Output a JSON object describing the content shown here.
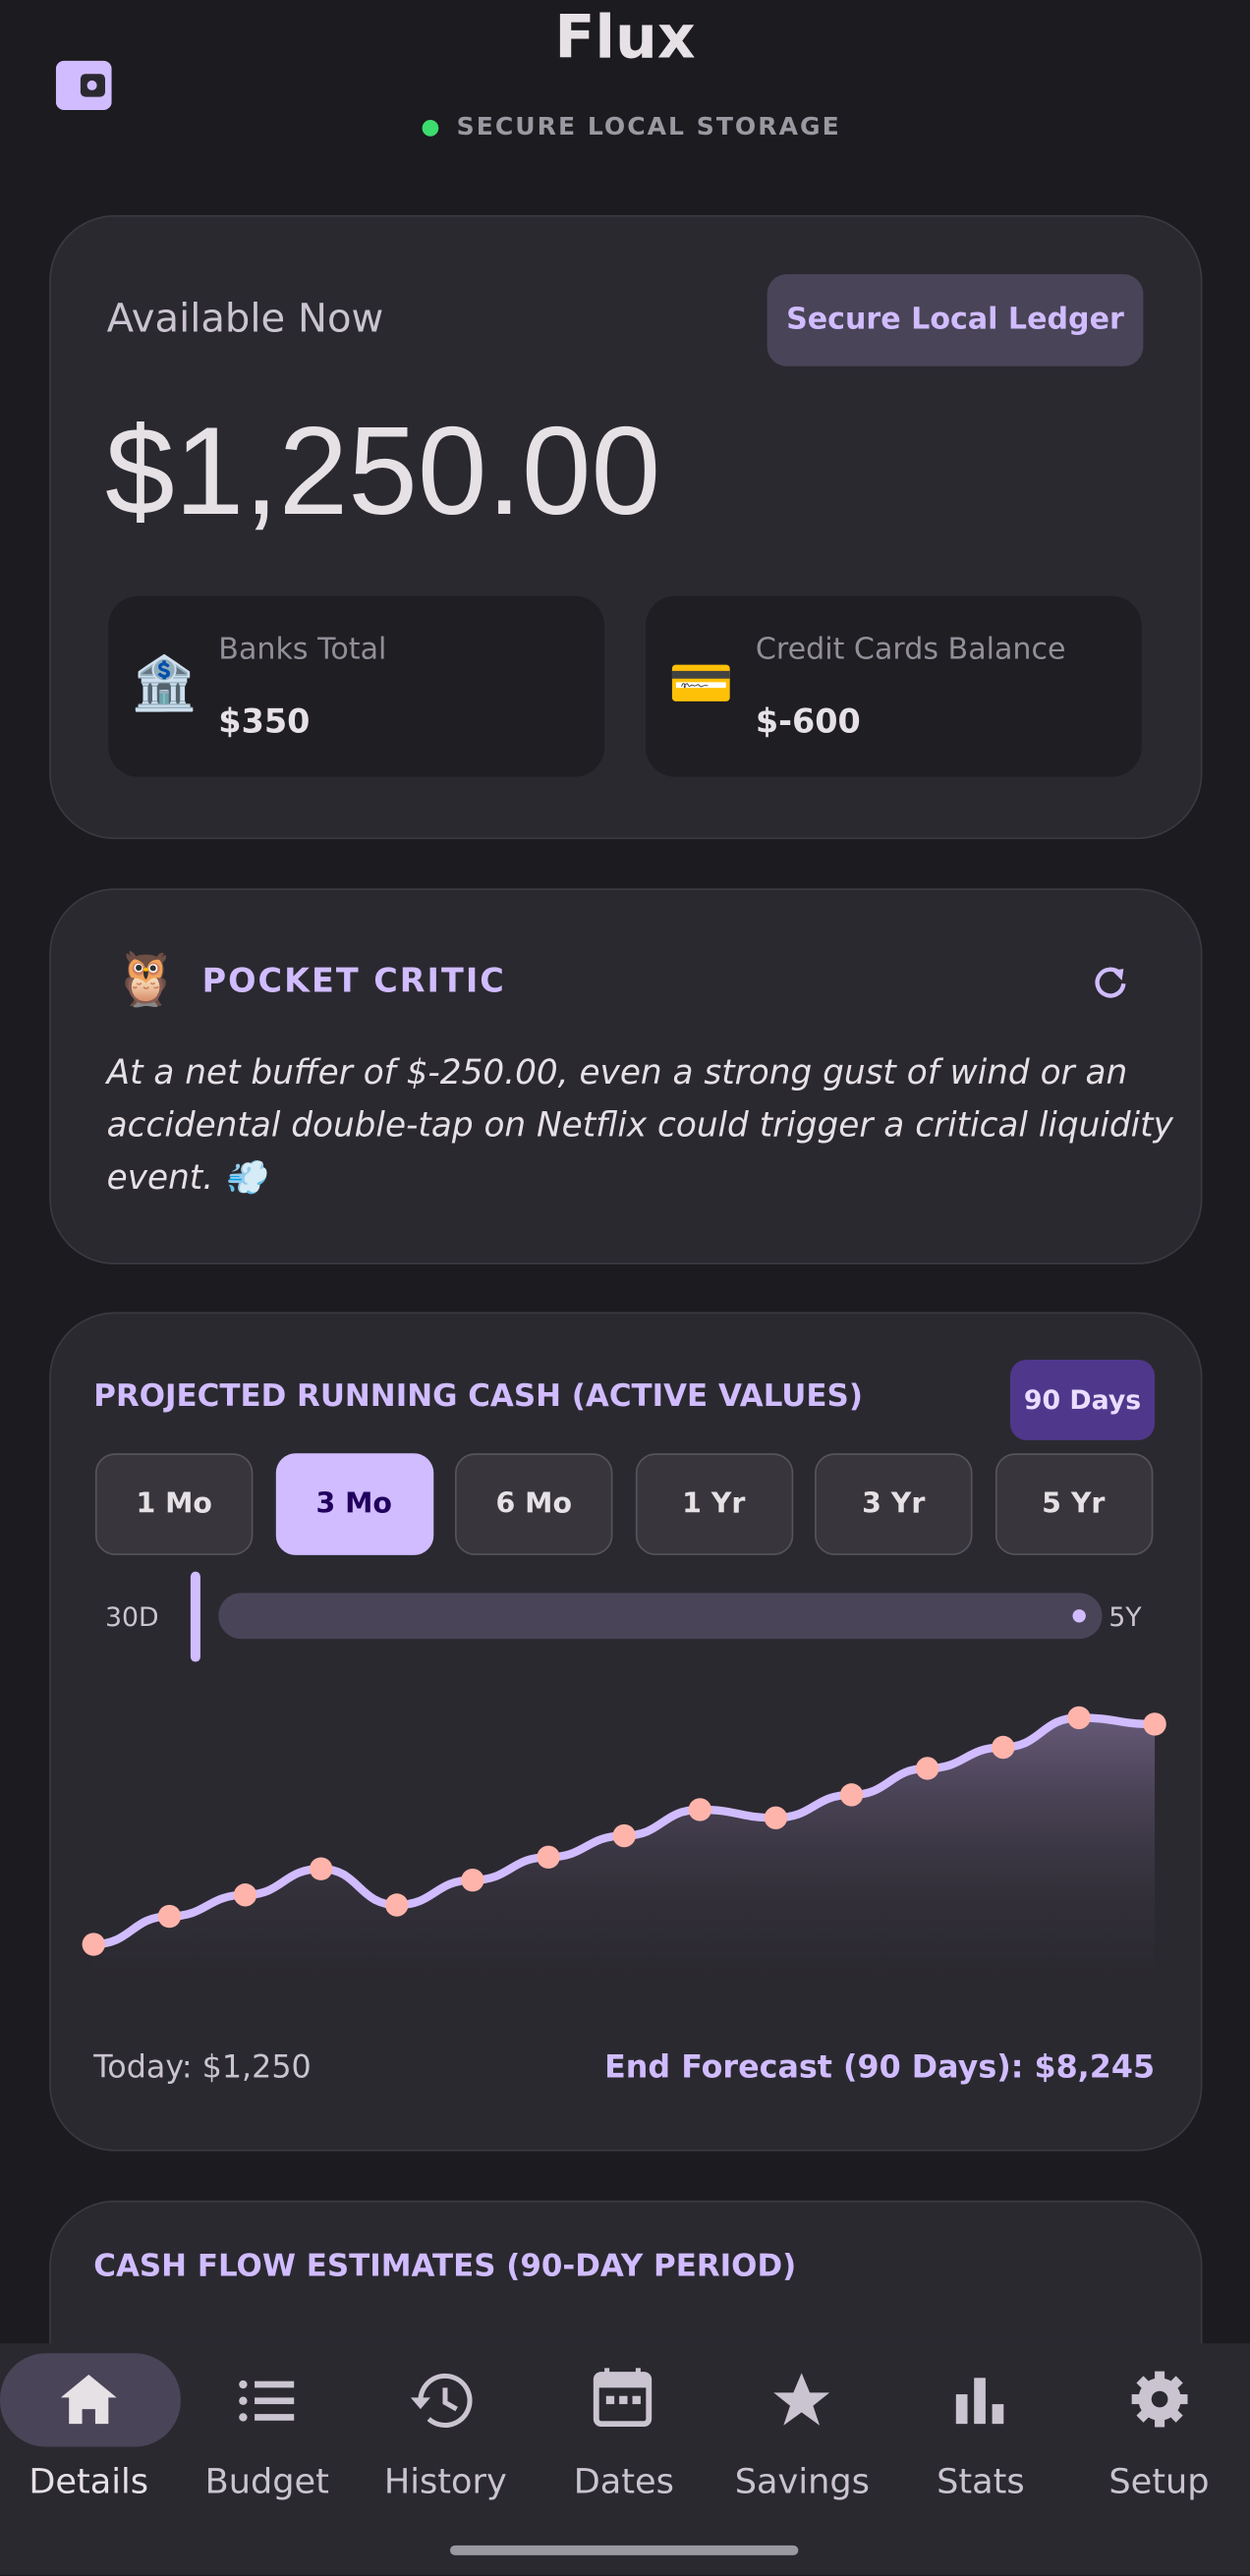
{
  "header": {
    "title": "Flux",
    "status": "SECURE LOCAL STORAGE"
  },
  "balance_card": {
    "label": "Available Now",
    "badge": "Secure Local Ledger",
    "amount": "$1,250.00",
    "accounts": [
      {
        "icon": "🏦",
        "label": "Banks Total",
        "amount": "$350"
      },
      {
        "icon": "💳",
        "label": "Credit Cards Balance",
        "amount": "$-600"
      }
    ]
  },
  "critic_card": {
    "icon": "🦉",
    "title": "POCKET CRITIC",
    "text": "At a net buffer of $-250.00, even a strong gust of wind or an accidental double-tap on Netflix could trigger a critical liquidity event. 💨"
  },
  "forecast_card": {
    "title": "PROJECTED RUNNING CASH (ACTIVE VALUES)",
    "badge": "90 Days",
    "ranges": [
      "1 Mo",
      "3 Mo",
      "6 Mo",
      "1 Yr",
      "3 Yr",
      "5 Yr"
    ],
    "slider": {
      "min_label": "30D",
      "max_label": "5Y"
    },
    "chart": {
      "type": "line",
      "values": [
        1250,
        2140,
        2820,
        3650,
        2500,
        3290,
        4020,
        4700,
        5530,
        5270,
        6000,
        6840,
        7510,
        8450,
        8245
      ]
    },
    "today": "Today: $1,250",
    "end": "End Forecast (90 Days): $8,245"
  },
  "cash_flow_card": {
    "title": "CASH FLOW ESTIMATES (90-DAY PERIOD)"
  },
  "nav": [
    "Details",
    "Budget",
    "History",
    "Dates",
    "Savings",
    "Stats",
    "Setup"
  ]
}
